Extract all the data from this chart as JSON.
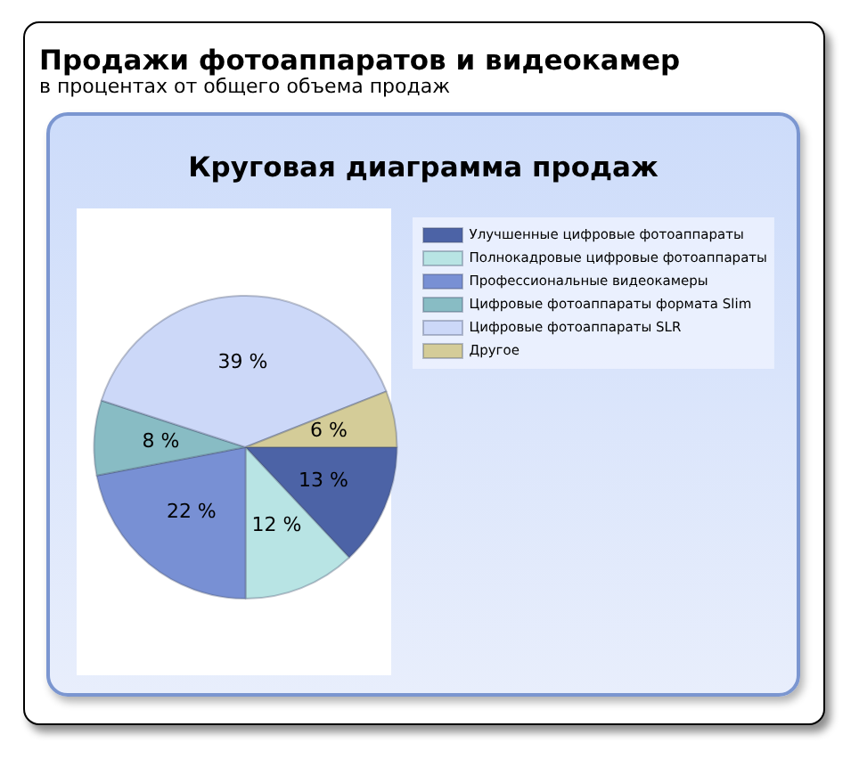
{
  "chart_data": {
    "type": "pie",
    "title": "Продажи фотоаппаратов и видеокамер",
    "subtitle": "в процентах от общего объема продаж",
    "annotations": [
      "Круговая диаграмма продаж"
    ],
    "categories": [
      "Улучшенные цифровые фотоаппараты",
      "Полнокадровые цифровые фотоаппараты",
      "Профессиональные видеокамеры",
      "Цифровые фотоаппараты формата Slim",
      "Цифровые фотоаппараты SLR",
      "Другое"
    ],
    "values": [
      13,
      12,
      22,
      8,
      39,
      6
    ],
    "colors": [
      "#4c63a6",
      "#b8e4e4",
      "#7890d4",
      "#88bcc4",
      "#ccd8f8",
      "#d4cc98"
    ],
    "value_labels": [
      "13 %",
      "12 %",
      "22 %",
      "8 %",
      "39 %",
      "6 %"
    ],
    "legend": "top right"
  }
}
